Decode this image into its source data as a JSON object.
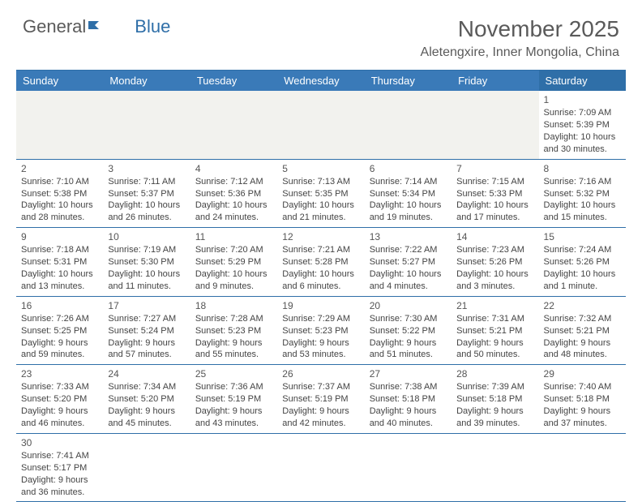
{
  "logo": {
    "text1": "General",
    "text2": "Blue"
  },
  "title": "November 2025",
  "location": "Aletengxire, Inner Mongolia, China",
  "colors": {
    "header_bg": "#3a7ab8",
    "header_bg_sat": "#2f6fa8",
    "border": "#2f6fa8",
    "blank_bg": "#f2f2ee",
    "text": "#444444"
  },
  "day_headers": [
    "Sunday",
    "Monday",
    "Tuesday",
    "Wednesday",
    "Thursday",
    "Friday",
    "Saturday"
  ],
  "weeks": [
    [
      null,
      null,
      null,
      null,
      null,
      null,
      {
        "n": "1",
        "sr": "Sunrise: 7:09 AM",
        "ss": "Sunset: 5:39 PM",
        "dl": "Daylight: 10 hours and 30 minutes."
      }
    ],
    [
      {
        "n": "2",
        "sr": "Sunrise: 7:10 AM",
        "ss": "Sunset: 5:38 PM",
        "dl": "Daylight: 10 hours and 28 minutes."
      },
      {
        "n": "3",
        "sr": "Sunrise: 7:11 AM",
        "ss": "Sunset: 5:37 PM",
        "dl": "Daylight: 10 hours and 26 minutes."
      },
      {
        "n": "4",
        "sr": "Sunrise: 7:12 AM",
        "ss": "Sunset: 5:36 PM",
        "dl": "Daylight: 10 hours and 24 minutes."
      },
      {
        "n": "5",
        "sr": "Sunrise: 7:13 AM",
        "ss": "Sunset: 5:35 PM",
        "dl": "Daylight: 10 hours and 21 minutes."
      },
      {
        "n": "6",
        "sr": "Sunrise: 7:14 AM",
        "ss": "Sunset: 5:34 PM",
        "dl": "Daylight: 10 hours and 19 minutes."
      },
      {
        "n": "7",
        "sr": "Sunrise: 7:15 AM",
        "ss": "Sunset: 5:33 PM",
        "dl": "Daylight: 10 hours and 17 minutes."
      },
      {
        "n": "8",
        "sr": "Sunrise: 7:16 AM",
        "ss": "Sunset: 5:32 PM",
        "dl": "Daylight: 10 hours and 15 minutes."
      }
    ],
    [
      {
        "n": "9",
        "sr": "Sunrise: 7:18 AM",
        "ss": "Sunset: 5:31 PM",
        "dl": "Daylight: 10 hours and 13 minutes."
      },
      {
        "n": "10",
        "sr": "Sunrise: 7:19 AM",
        "ss": "Sunset: 5:30 PM",
        "dl": "Daylight: 10 hours and 11 minutes."
      },
      {
        "n": "11",
        "sr": "Sunrise: 7:20 AM",
        "ss": "Sunset: 5:29 PM",
        "dl": "Daylight: 10 hours and 9 minutes."
      },
      {
        "n": "12",
        "sr": "Sunrise: 7:21 AM",
        "ss": "Sunset: 5:28 PM",
        "dl": "Daylight: 10 hours and 6 minutes."
      },
      {
        "n": "13",
        "sr": "Sunrise: 7:22 AM",
        "ss": "Sunset: 5:27 PM",
        "dl": "Daylight: 10 hours and 4 minutes."
      },
      {
        "n": "14",
        "sr": "Sunrise: 7:23 AM",
        "ss": "Sunset: 5:26 PM",
        "dl": "Daylight: 10 hours and 3 minutes."
      },
      {
        "n": "15",
        "sr": "Sunrise: 7:24 AM",
        "ss": "Sunset: 5:26 PM",
        "dl": "Daylight: 10 hours and 1 minute."
      }
    ],
    [
      {
        "n": "16",
        "sr": "Sunrise: 7:26 AM",
        "ss": "Sunset: 5:25 PM",
        "dl": "Daylight: 9 hours and 59 minutes."
      },
      {
        "n": "17",
        "sr": "Sunrise: 7:27 AM",
        "ss": "Sunset: 5:24 PM",
        "dl": "Daylight: 9 hours and 57 minutes."
      },
      {
        "n": "18",
        "sr": "Sunrise: 7:28 AM",
        "ss": "Sunset: 5:23 PM",
        "dl": "Daylight: 9 hours and 55 minutes."
      },
      {
        "n": "19",
        "sr": "Sunrise: 7:29 AM",
        "ss": "Sunset: 5:23 PM",
        "dl": "Daylight: 9 hours and 53 minutes."
      },
      {
        "n": "20",
        "sr": "Sunrise: 7:30 AM",
        "ss": "Sunset: 5:22 PM",
        "dl": "Daylight: 9 hours and 51 minutes."
      },
      {
        "n": "21",
        "sr": "Sunrise: 7:31 AM",
        "ss": "Sunset: 5:21 PM",
        "dl": "Daylight: 9 hours and 50 minutes."
      },
      {
        "n": "22",
        "sr": "Sunrise: 7:32 AM",
        "ss": "Sunset: 5:21 PM",
        "dl": "Daylight: 9 hours and 48 minutes."
      }
    ],
    [
      {
        "n": "23",
        "sr": "Sunrise: 7:33 AM",
        "ss": "Sunset: 5:20 PM",
        "dl": "Daylight: 9 hours and 46 minutes."
      },
      {
        "n": "24",
        "sr": "Sunrise: 7:34 AM",
        "ss": "Sunset: 5:20 PM",
        "dl": "Daylight: 9 hours and 45 minutes."
      },
      {
        "n": "25",
        "sr": "Sunrise: 7:36 AM",
        "ss": "Sunset: 5:19 PM",
        "dl": "Daylight: 9 hours and 43 minutes."
      },
      {
        "n": "26",
        "sr": "Sunrise: 7:37 AM",
        "ss": "Sunset: 5:19 PM",
        "dl": "Daylight: 9 hours and 42 minutes."
      },
      {
        "n": "27",
        "sr": "Sunrise: 7:38 AM",
        "ss": "Sunset: 5:18 PM",
        "dl": "Daylight: 9 hours and 40 minutes."
      },
      {
        "n": "28",
        "sr": "Sunrise: 7:39 AM",
        "ss": "Sunset: 5:18 PM",
        "dl": "Daylight: 9 hours and 39 minutes."
      },
      {
        "n": "29",
        "sr": "Sunrise: 7:40 AM",
        "ss": "Sunset: 5:18 PM",
        "dl": "Daylight: 9 hours and 37 minutes."
      }
    ],
    [
      {
        "n": "30",
        "sr": "Sunrise: 7:41 AM",
        "ss": "Sunset: 5:17 PM",
        "dl": "Daylight: 9 hours and 36 minutes."
      },
      null,
      null,
      null,
      null,
      null,
      null
    ]
  ]
}
